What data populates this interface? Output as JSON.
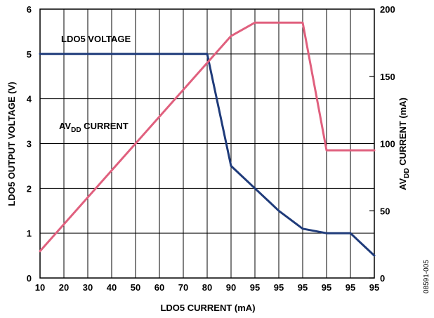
{
  "chart_data": {
    "type": "line",
    "x_ticks": [
      "10",
      "20",
      "30",
      "40",
      "50",
      "60",
      "70",
      "80",
      "90",
      "95",
      "95",
      "95",
      "95",
      "95",
      "95"
    ],
    "xlabel": "LDO5 CURRENT (mA)",
    "ylabel_left": "LDO5 OUTPUT VOLTAGE (V)",
    "ylabel_right_parts": {
      "pre": "AV",
      "sub": "DD",
      "post": " CURRENT (mA)"
    },
    "left_axis": {
      "ylim": [
        0,
        6
      ],
      "ticks": [
        "0",
        "1",
        "2",
        "3",
        "4",
        "5",
        "6"
      ]
    },
    "right_axis": {
      "ylim": [
        0,
        200
      ],
      "ticks": [
        "0",
        "50",
        "100",
        "150",
        "200"
      ]
    },
    "grid": true,
    "series": [
      {
        "name": "LDO5 VOLTAGE",
        "axis": "left",
        "color": "#1f3b7a",
        "x_index": [
          0,
          7,
          8,
          9,
          10,
          11,
          12,
          13,
          14
        ],
        "values": [
          5.0,
          5.0,
          2.5,
          2.0,
          1.5,
          1.1,
          1.0,
          1.0,
          0.5
        ]
      },
      {
        "name_parts": {
          "pre": "AV",
          "sub": "DD",
          "post": " CURRENT"
        },
        "axis": "right",
        "color": "#e0607e",
        "x_index": [
          0,
          8,
          9,
          10,
          11,
          12,
          13,
          14
        ],
        "values": [
          20,
          180,
          190,
          190,
          190,
          95,
          95,
          95
        ]
      }
    ],
    "annotations": {
      "ldo5_label": "LDO5 VOLTAGE",
      "avdd_pre": "AV",
      "avdd_sub": "DD",
      "avdd_post": " CURRENT"
    },
    "figure_id": "08591-005"
  }
}
